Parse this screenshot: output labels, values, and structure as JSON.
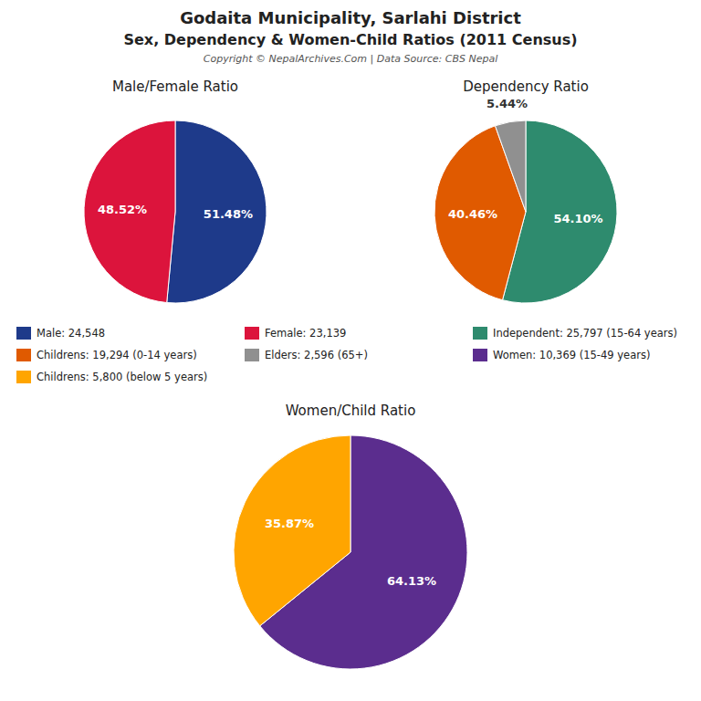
{
  "title": "Godaita Municipality, Sarlahi District",
  "subtitle": "Sex, Dependency & Women-Child Ratios (2011 Census)",
  "annotations": [
    "Copyright © NepalArchives.Com | Data Source: CBS Nepal"
  ],
  "chart_data": [
    {
      "type": "pie",
      "title": "Male/Female Ratio",
      "categories": [
        "Male: 24,548",
        "Female: 23,139"
      ],
      "values": [
        51.48,
        48.52
      ],
      "value_labels": [
        "51.48%",
        "48.52%"
      ],
      "colors": [
        "#1E3A8A",
        "#DC143C"
      ],
      "data_labels": true,
      "legend": "center"
    },
    {
      "type": "pie",
      "title": "Dependency Ratio",
      "categories": [
        "Independent: 25,797 (15-64 years)",
        "Childrens: 19,294 (0-14 years)",
        "Elders: 2,596 (65+)"
      ],
      "values": [
        54.1,
        40.46,
        5.44
      ],
      "value_labels": [
        "54.10%",
        "40.46%",
        "5.44%"
      ],
      "colors": [
        "#2E8B6E",
        "#E05A00",
        "#909090"
      ],
      "data_labels": true,
      "legend": "center"
    },
    {
      "type": "pie",
      "title": "Women/Child Ratio",
      "categories": [
        "Women: 10,369 (15-49 years)",
        "Childrens: 5,800 (below 5 years)"
      ],
      "values": [
        64.13,
        35.87
      ],
      "value_labels": [
        "64.13%",
        "35.87%"
      ],
      "colors": [
        "#5B2D8E",
        "#FFA500"
      ],
      "data_labels": true,
      "legend": "center"
    }
  ]
}
